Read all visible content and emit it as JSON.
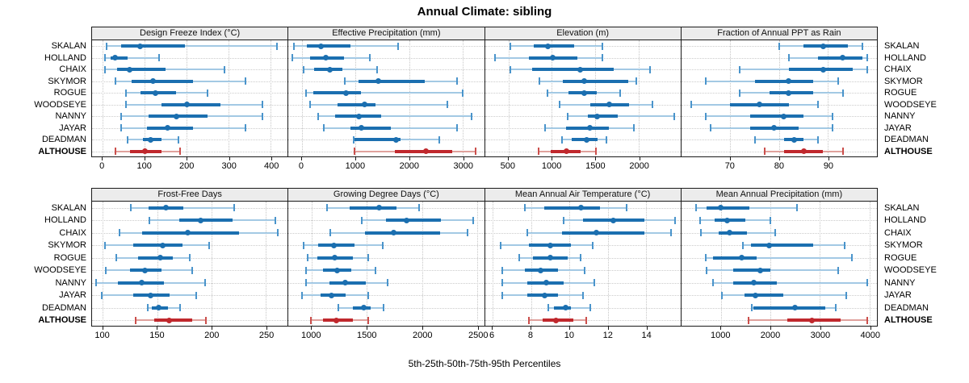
{
  "title": "Annual Climate: sibling",
  "caption": "5th-25th-50th-75th-95th Percentiles",
  "colors": {
    "site_dark": "#1b6fb0",
    "site_light": "#a3c9e4",
    "site_cap": "#4a94cb",
    "highlight_dark": "#c0282d",
    "highlight_light": "#e0a19c",
    "highlight_cap": "#cb4f4c",
    "strip_bg": "#ececec",
    "grid": "#c6c6c6",
    "border": "#1a1a1a"
  },
  "chart_data": {
    "type": "scatter",
    "mark": "median-dot-with-5-25-50-75-95-percentile-whiskers",
    "percentile_levels": [
      5,
      25,
      50,
      75,
      95
    ],
    "sites": [
      "SKALAN",
      "HOLLAND",
      "CHAIX",
      "SKYMOR",
      "ROGUE",
      "WOODSEYE",
      "NANNY",
      "JAYAR",
      "DEADMAN",
      "ALTHOUSE"
    ],
    "highlight_site": "ALTHOUSE",
    "legend_position": "none",
    "grid": "dotted",
    "panels": [
      {
        "title": "Design Freeze Index (°C)",
        "row": 0,
        "col": 0,
        "xlim": [
          -25,
          440
        ],
        "ticks": [
          0,
          100,
          200,
          300,
          400
        ],
        "series": [
          {
            "name": "SKALAN",
            "values": [
              10,
              45,
              90,
              195,
              415
            ]
          },
          {
            "name": "HOLLAND",
            "values": [
              5,
              20,
              30,
              60,
              135
            ]
          },
          {
            "name": "CHAIX",
            "values": [
              5,
              35,
              65,
              150,
              290
            ]
          },
          {
            "name": "SKYMOR",
            "values": [
              30,
              70,
              120,
              215,
              340
            ]
          },
          {
            "name": "ROGUE",
            "values": [
              55,
              90,
              125,
              175,
              250
            ]
          },
          {
            "name": "WOODSEYE",
            "values": [
              55,
              140,
              200,
              280,
              380
            ]
          },
          {
            "name": "NANNY",
            "values": [
              45,
              110,
              175,
              250,
              380
            ]
          },
          {
            "name": "JAYAR",
            "values": [
              45,
              105,
              155,
              215,
              340
            ]
          },
          {
            "name": "DEADMAN",
            "values": [
              60,
              95,
              115,
              140,
              180
            ]
          },
          {
            "name": "ALTHOUSE",
            "values": [
              30,
              65,
              100,
              140,
              185
            ]
          }
        ]
      },
      {
        "title": "Effective Precipitation (mm)",
        "row": 0,
        "col": 1,
        "xlim": [
          -250,
          3400
        ],
        "ticks": [
          0,
          1000,
          2000,
          3000
        ],
        "series": [
          {
            "name": "SKALAN",
            "values": [
              -150,
              100,
              360,
              900,
              1800
            ]
          },
          {
            "name": "HOLLAND",
            "values": [
              -180,
              150,
              440,
              780,
              1270
            ]
          },
          {
            "name": "CHAIX",
            "values": [
              30,
              230,
              520,
              750,
              1400
            ]
          },
          {
            "name": "SKYMOR",
            "values": [
              800,
              1060,
              1430,
              2300,
              2900
            ]
          },
          {
            "name": "ROGUE",
            "values": [
              80,
              210,
              830,
              1110,
              3000
            ]
          },
          {
            "name": "WOODSEYE",
            "values": [
              160,
              670,
              1170,
              1370,
              2720
            ]
          },
          {
            "name": "NANNY",
            "values": [
              310,
              620,
              1060,
              1480,
              3160
            ]
          },
          {
            "name": "JAYAR",
            "values": [
              410,
              910,
              1110,
              1660,
              2900
            ]
          },
          {
            "name": "DEADMAN",
            "values": [
              960,
              980,
              1760,
              1840,
              2570
            ]
          },
          {
            "name": "ALTHOUSE",
            "values": [
              980,
              1740,
              2310,
              2800,
              3240
            ]
          }
        ]
      },
      {
        "title": "Elevation (m)",
        "row": 0,
        "col": 2,
        "xlim": [
          230,
          2480
        ],
        "ticks": [
          500,
          1000,
          1500,
          2000
        ],
        "series": [
          {
            "name": "SKALAN",
            "values": [
              520,
              790,
              950,
              1260,
              1580
            ]
          },
          {
            "name": "HOLLAND",
            "values": [
              350,
              740,
              1010,
              1290,
              1580
            ]
          },
          {
            "name": "CHAIX",
            "values": [
              520,
              770,
              1330,
              1710,
              2130
            ]
          },
          {
            "name": "SKYMOR",
            "values": [
              860,
              1130,
              1370,
              1880,
              1970
            ]
          },
          {
            "name": "ROGUE",
            "values": [
              950,
              1190,
              1370,
              1520,
              1790
            ]
          },
          {
            "name": "WOODSEYE",
            "values": [
              1090,
              1440,
              1660,
              1890,
              2160
            ]
          },
          {
            "name": "NANNY",
            "values": [
              1180,
              1410,
              1520,
              1760,
              2410
            ]
          },
          {
            "name": "JAYAR",
            "values": [
              920,
              1160,
              1440,
              1660,
              1940
            ]
          },
          {
            "name": "DEADMAN",
            "values": [
              1120,
              1230,
              1400,
              1530,
              1630
            ]
          },
          {
            "name": "ALTHOUSE",
            "values": [
              850,
              990,
              1170,
              1330,
              1510
            ]
          }
        ]
      },
      {
        "title": "Fraction of Annual PPT as Rain",
        "row": 0,
        "col": 3,
        "xlim": [
          60,
          100
        ],
        "ticks": [
          70,
          80,
          90
        ],
        "series": [
          {
            "name": "SKALAN",
            "values": [
              80,
              85,
              89,
              94,
              97
            ]
          },
          {
            "name": "HOLLAND",
            "values": [
              82,
              88,
              93,
              97,
              98
            ]
          },
          {
            "name": "CHAIX",
            "values": [
              72,
              82,
              89,
              95,
              98
            ]
          },
          {
            "name": "SKYMOR",
            "values": [
              65,
              75,
              82,
              87,
              92
            ]
          },
          {
            "name": "ROGUE",
            "values": [
              72,
              78,
              82,
              87,
              93
            ]
          },
          {
            "name": "WOODSEYE",
            "values": [
              62,
              70,
              76,
              82,
              88
            ]
          },
          {
            "name": "NANNY",
            "values": [
              65,
              74,
              81,
              85,
              91
            ]
          },
          {
            "name": "JAYAR",
            "values": [
              66,
              74,
              79,
              84,
              91
            ]
          },
          {
            "name": "DEADMAN",
            "values": [
              75,
              81,
              83,
              85,
              88
            ]
          },
          {
            "name": "ALTHOUSE",
            "values": [
              77,
              81,
              85,
              89,
              93
            ]
          }
        ]
      },
      {
        "title": "Frost-Free Days",
        "row": 1,
        "col": 0,
        "xlim": [
          90,
          270
        ],
        "ticks": [
          100,
          150,
          200,
          250
        ],
        "series": [
          {
            "name": "SKALAN",
            "values": [
              126,
              142,
              158,
              174,
              221
            ]
          },
          {
            "name": "HOLLAND",
            "values": [
              143,
              170,
              190,
              219,
              259
            ]
          },
          {
            "name": "CHAIX",
            "values": [
              115,
              136,
              178,
              225,
              261
            ]
          },
          {
            "name": "SKYMOR",
            "values": [
              102,
              128,
              155,
              173,
              198
            ]
          },
          {
            "name": "ROGUE",
            "values": [
              112,
              132,
              153,
              164,
              180
            ]
          },
          {
            "name": "WOODSEYE",
            "values": [
              103,
              125,
              139,
              154,
              182
            ]
          },
          {
            "name": "NANNY",
            "values": [
              94,
              114,
              136,
              156,
              194
            ]
          },
          {
            "name": "JAYAR",
            "values": [
              99,
              128,
              144,
              161,
              186
            ]
          },
          {
            "name": "DEADMAN",
            "values": [
              141,
              145,
              151,
              160,
              171
            ]
          },
          {
            "name": "ALTHOUSE",
            "values": [
              130,
              147,
              161,
              182,
              195
            ]
          }
        ]
      },
      {
        "title": "Growing Degree Days (°C)",
        "row": 1,
        "col": 1,
        "xlim": [
          790,
          2560
        ],
        "ticks": [
          1000,
          1500,
          2000,
          2500
        ],
        "series": [
          {
            "name": "SKALAN",
            "values": [
              1140,
              1340,
              1610,
              1770,
              1970
            ]
          },
          {
            "name": "HOLLAND",
            "values": [
              1450,
              1670,
              1860,
              2170,
              2460
            ]
          },
          {
            "name": "CHAIX",
            "values": [
              1170,
              1480,
              1740,
              2160,
              2410
            ]
          },
          {
            "name": "SKYMOR",
            "values": [
              930,
              1060,
              1200,
              1390,
              1640
            ]
          },
          {
            "name": "ROGUE",
            "values": [
              960,
              1050,
              1210,
              1370,
              1510
            ]
          },
          {
            "name": "WOODSEYE",
            "values": [
              950,
              1100,
              1230,
              1360,
              1580
            ]
          },
          {
            "name": "NANNY",
            "values": [
              950,
              1160,
              1300,
              1490,
              1690
            ]
          },
          {
            "name": "JAYAR",
            "values": [
              910,
              1080,
              1180,
              1310,
              1510
            ]
          },
          {
            "name": "DEADMAN",
            "values": [
              1240,
              1370,
              1470,
              1530,
              1650
            ]
          },
          {
            "name": "ALTHOUSE",
            "values": [
              990,
              1100,
              1220,
              1370,
              1510
            ]
          }
        ]
      },
      {
        "title": "Mean Annual Air Temperature (°C)",
        "row": 1,
        "col": 2,
        "xlim": [
          5.6,
          15.8
        ],
        "ticks": [
          6,
          8,
          10,
          12,
          14
        ],
        "series": [
          {
            "name": "SKALAN",
            "values": [
              7.7,
              8.7,
              10.6,
              11.6,
              13.0
            ]
          },
          {
            "name": "HOLLAND",
            "values": [
              9.7,
              10.7,
              12.3,
              13.9,
              15.5
            ]
          },
          {
            "name": "CHAIX",
            "values": [
              7.8,
              9.6,
              11.4,
              13.9,
              15.3
            ]
          },
          {
            "name": "SKYMOR",
            "values": [
              6.4,
              7.9,
              9.0,
              10.1,
              11.2
            ]
          },
          {
            "name": "ROGUE",
            "values": [
              7.4,
              8.1,
              9.0,
              9.9,
              10.6
            ]
          },
          {
            "name": "WOODSEYE",
            "values": [
              6.5,
              7.7,
              8.5,
              9.4,
              10.8
            ]
          },
          {
            "name": "NANNY",
            "values": [
              6.5,
              7.8,
              8.8,
              9.7,
              11.3
            ]
          },
          {
            "name": "JAYAR",
            "values": [
              6.5,
              7.8,
              8.7,
              9.4,
              10.7
            ]
          },
          {
            "name": "DEADMAN",
            "values": [
              8.9,
              9.2,
              9.8,
              10.1,
              11.1
            ]
          },
          {
            "name": "ALTHOUSE",
            "values": [
              7.9,
              8.6,
              9.3,
              10.2,
              10.9
            ]
          }
        ]
      },
      {
        "title": "Mean Annual Precipitation (mm)",
        "row": 1,
        "col": 3,
        "xlim": [
          200,
          4150
        ],
        "ticks": [
          1000,
          2000,
          3000,
          4000
        ],
        "series": [
          {
            "name": "SKALAN",
            "values": [
              500,
              710,
              1000,
              1580,
              2540
            ]
          },
          {
            "name": "HOLLAND",
            "values": [
              580,
              870,
              1120,
              1490,
              1990
            ]
          },
          {
            "name": "CHAIX",
            "values": [
              600,
              950,
              1180,
              1530,
              2090
            ]
          },
          {
            "name": "SKYMOR",
            "values": [
              1440,
              1600,
              1970,
              2870,
              3490
            ]
          },
          {
            "name": "ROGUE",
            "values": [
              700,
              840,
              1420,
              1720,
              3650
            ]
          },
          {
            "name": "WOODSEYE",
            "values": [
              710,
              1240,
              1790,
              2000,
              3370
            ]
          },
          {
            "name": "NANNY",
            "values": [
              840,
              1240,
              1660,
              2130,
              3960
            ]
          },
          {
            "name": "JAYAR",
            "values": [
              1020,
              1470,
              1700,
              2260,
              3530
            ]
          },
          {
            "name": "DEADMAN",
            "values": [
              1630,
              1650,
              2500,
              3110,
              3320
            ]
          },
          {
            "name": "ALTHOUSE",
            "values": [
              1560,
              2340,
              2840,
              3420,
              3950
            ]
          }
        ]
      }
    ]
  }
}
